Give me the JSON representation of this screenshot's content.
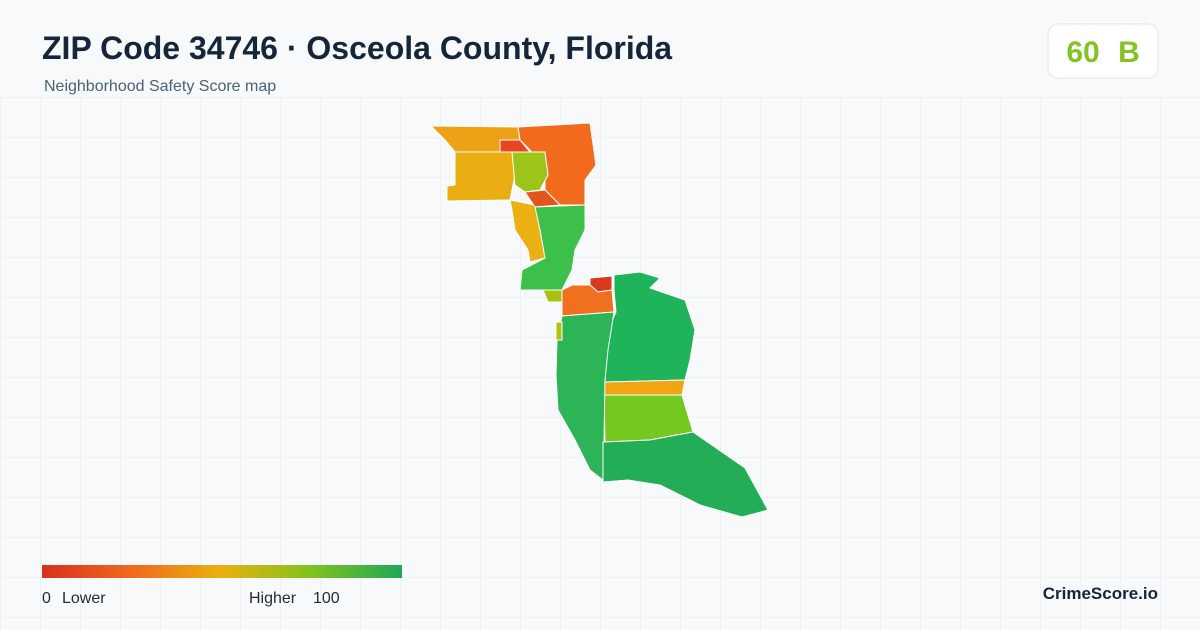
{
  "header": {
    "title": "ZIP Code 34746 · Osceola County, Florida",
    "subtitle": "Neighborhood Safety Score map"
  },
  "score": {
    "value": "60",
    "grade": "B"
  },
  "legend": {
    "min": "0",
    "low_label": "Lower",
    "high_label": "Higher",
    "max": "100"
  },
  "footer": {
    "brand": "CrimeScore.io"
  }
}
